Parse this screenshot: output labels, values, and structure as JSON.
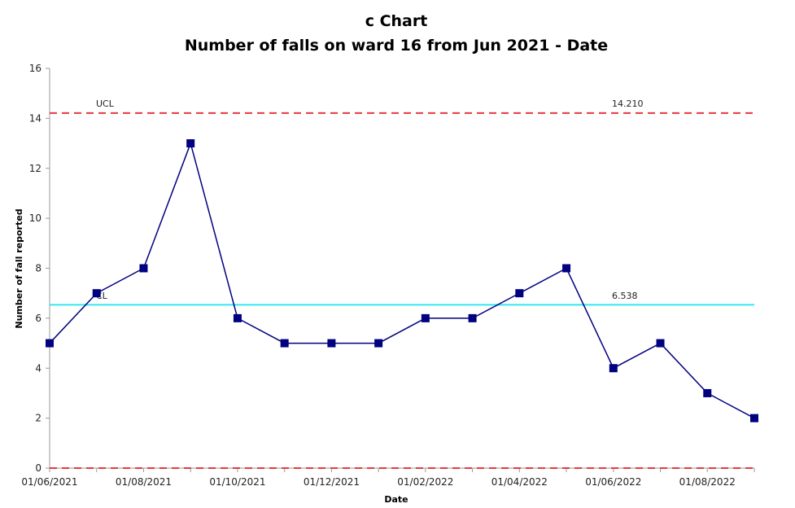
{
  "chart_data": {
    "type": "line",
    "title": "c Chart",
    "subtitle": "Number of falls on ward 16 from Jun 2021 - Date",
    "xlabel": "Date",
    "ylabel": "Number of fall reported",
    "ylim": [
      0,
      16
    ],
    "yticks": [
      0,
      2,
      4,
      6,
      8,
      10,
      12,
      14,
      16
    ],
    "x": [
      "01/06/2021",
      "01/07/2021",
      "01/08/2021",
      "01/09/2021",
      "01/10/2021",
      "01/11/2021",
      "01/12/2021",
      "01/01/2022",
      "01/02/2022",
      "01/03/2022",
      "01/04/2022",
      "01/05/2022",
      "01/06/2022",
      "01/07/2022",
      "01/08/2022",
      "01/09/2022"
    ],
    "xtick_labels": [
      "01/06/2021",
      "01/08/2021",
      "01/10/2021",
      "01/12/2021",
      "01/02/2022",
      "01/04/2022",
      "01/06/2022",
      "01/08/2022"
    ],
    "values": [
      5,
      7,
      8,
      13,
      6,
      5,
      5,
      5,
      6,
      6,
      7,
      8,
      4,
      5,
      3,
      2
    ],
    "control_lines": {
      "ucl": {
        "label": "UCL",
        "value": 14.21,
        "value_label": "14.210",
        "color": "#e8383d"
      },
      "cl": {
        "label": "CL",
        "value": 6.538,
        "value_label": "6.538",
        "color": "#33e6f0"
      },
      "lcl": {
        "value": 0,
        "color": "#e8383d"
      }
    },
    "series_color": "#000080",
    "grid": false,
    "legend": "none"
  }
}
